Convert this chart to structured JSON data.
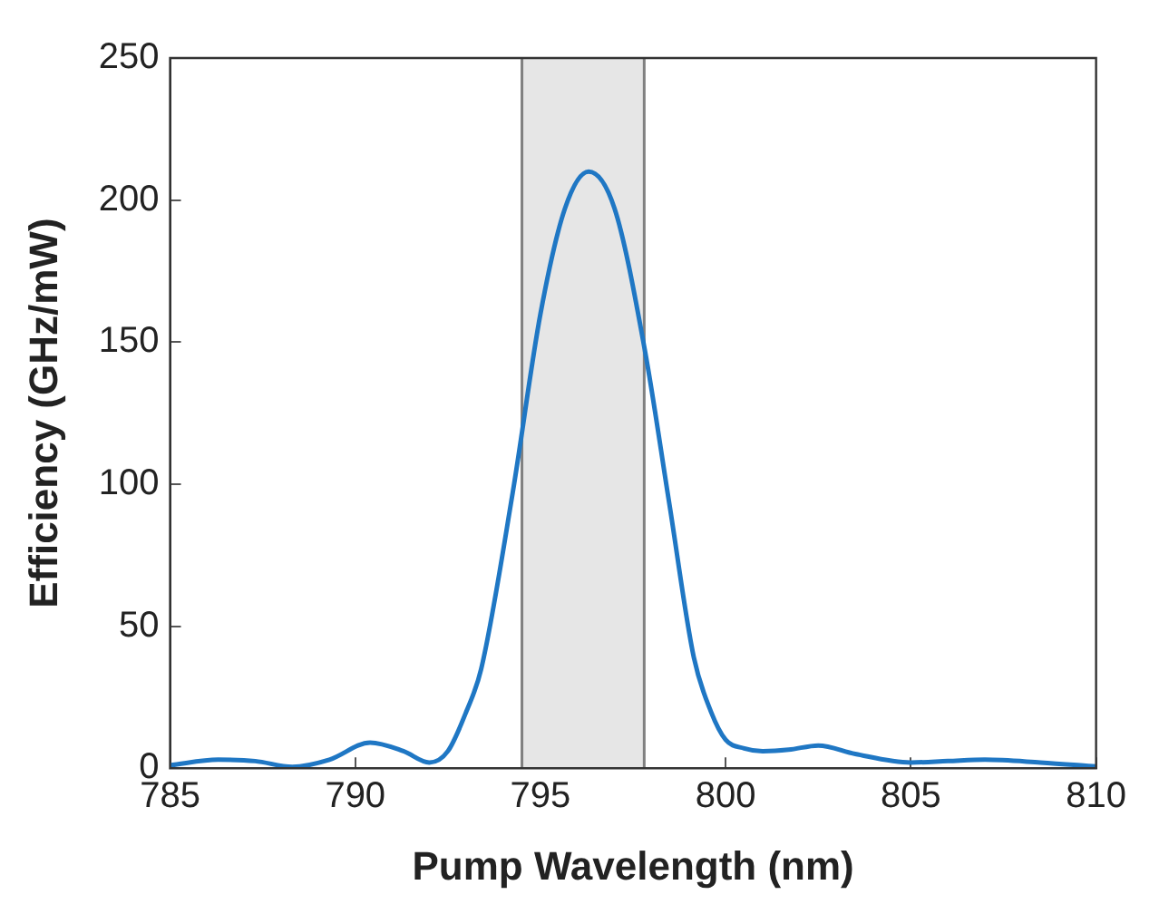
{
  "chart_data": {
    "type": "line",
    "xlabel": "Pump Wavelength (nm)",
    "ylabel": "Efficiency (GHz/mW)",
    "xlim": [
      785,
      810
    ],
    "xticks": [
      785,
      790,
      795,
      800,
      805,
      810
    ],
    "ylim": [
      0,
      250
    ],
    "yticks": [
      0,
      50,
      100,
      150,
      200,
      250
    ],
    "grid": false,
    "legend": false,
    "series": [
      {
        "color": "#1f77c4",
        "x": [
          785,
          786.3,
          787.3,
          788.3,
          789.3,
          790.4,
          791.3,
          792,
          792.5,
          793,
          793.4,
          794.25,
          795,
          795.66,
          796.3,
          797,
          797.82,
          798.48,
          799.14,
          799.6,
          800,
          800.5,
          801,
          801.7,
          802.5,
          803.5,
          805,
          806,
          807,
          808.5,
          810
        ],
        "values": [
          1,
          3,
          2.5,
          0.5,
          3,
          9,
          6,
          2,
          6,
          20,
          35,
          97,
          160,
          197,
          210,
          197,
          147,
          93,
          39,
          20,
          10,
          7,
          6,
          6.5,
          8,
          5,
          2,
          2.5,
          3,
          2,
          0.6
        ]
      }
    ],
    "bands": [
      {
        "axis": "x",
        "from": 794.5,
        "to": 797.8,
        "color": "#e6e6e6"
      }
    ],
    "ref_lines": [
      {
        "axis": "x",
        "value": 794.5,
        "color": "#808080"
      },
      {
        "axis": "x",
        "value": 797.8,
        "color": "#808080"
      }
    ]
  }
}
